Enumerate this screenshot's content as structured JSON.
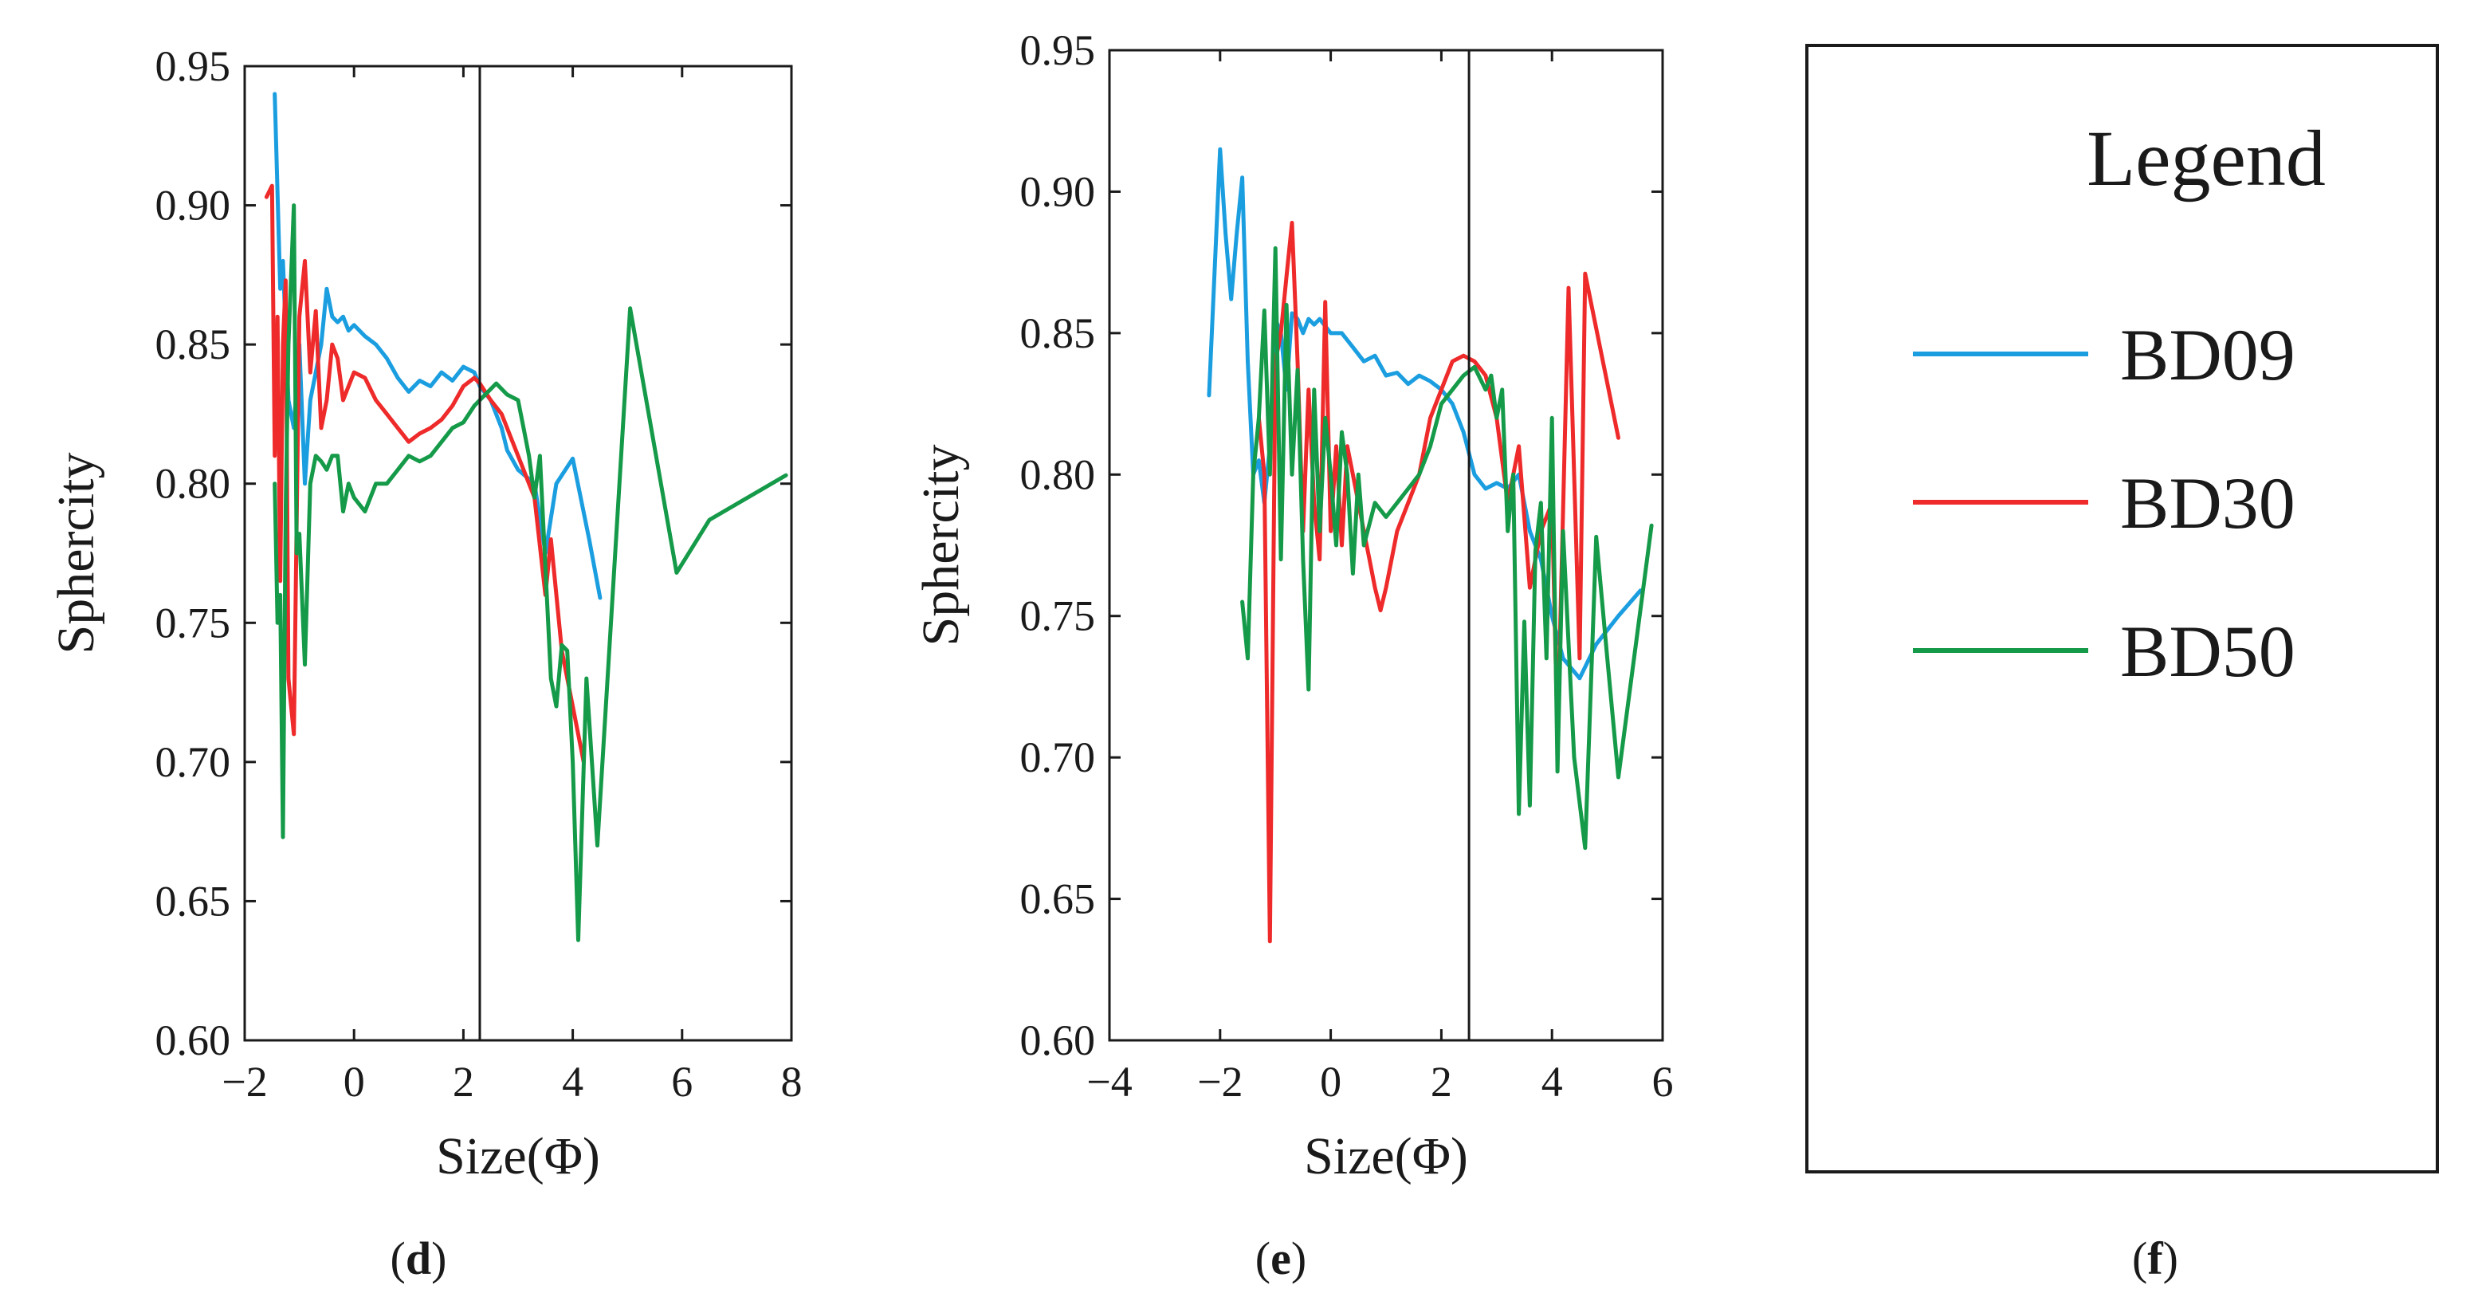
{
  "chart_data": [
    {
      "type": "line",
      "panel_label": "(d)",
      "panel_letter": "d",
      "xlabel": "Size(Φ)",
      "ylabel": "Sphercity",
      "xlim": [
        -2,
        8
      ],
      "ylim": [
        0.6,
        0.95
      ],
      "xticks": [
        -2,
        0,
        2,
        4,
        6,
        8
      ],
      "xtick_labels": [
        "−2",
        "0",
        "2",
        "4",
        "6",
        "8"
      ],
      "yticks": [
        0.6,
        0.65,
        0.7,
        0.75,
        0.8,
        0.85,
        0.9,
        0.95
      ],
      "ytick_labels": [
        "0.60",
        "0.65",
        "0.70",
        "0.75",
        "0.80",
        "0.85",
        "0.90",
        "0.95"
      ],
      "vline": 2.3,
      "grid": false,
      "series": [
        {
          "name": "BD09",
          "x": [
            -1.45,
            -1.35,
            -1.3,
            -1.2,
            -1.1,
            -1.0,
            -0.9,
            -0.8,
            -0.7,
            -0.6,
            -0.5,
            -0.4,
            -0.3,
            -0.2,
            -0.1,
            0.0,
            0.2,
            0.4,
            0.6,
            0.8,
            1.0,
            1.2,
            1.4,
            1.6,
            1.8,
            2.0,
            2.2,
            2.3,
            2.5,
            2.7,
            2.8,
            3.0,
            3.3,
            3.5,
            3.7,
            4.0,
            4.3,
            4.5
          ],
          "y": [
            0.94,
            0.87,
            0.88,
            0.83,
            0.82,
            0.85,
            0.8,
            0.83,
            0.84,
            0.85,
            0.87,
            0.86,
            0.858,
            0.86,
            0.855,
            0.857,
            0.853,
            0.85,
            0.845,
            0.838,
            0.833,
            0.837,
            0.835,
            0.84,
            0.837,
            0.842,
            0.84,
            0.835,
            0.83,
            0.82,
            0.812,
            0.805,
            0.8,
            0.775,
            0.8,
            0.809,
            0.78,
            0.759
          ]
        },
        {
          "name": "BD30",
          "x": [
            -1.6,
            -1.5,
            -1.45,
            -1.4,
            -1.35,
            -1.3,
            -1.25,
            -1.2,
            -1.1,
            -1.0,
            -0.9,
            -0.8,
            -0.7,
            -0.6,
            -0.5,
            -0.4,
            -0.3,
            -0.2,
            -0.1,
            0.0,
            0.2,
            0.4,
            0.6,
            0.8,
            1.0,
            1.2,
            1.4,
            1.6,
            1.8,
            2.0,
            2.2,
            2.3,
            2.5,
            2.7,
            2.9,
            3.1,
            3.3,
            3.5,
            3.6,
            3.8,
            4.0,
            4.2
          ],
          "y": [
            0.903,
            0.907,
            0.81,
            0.86,
            0.765,
            0.85,
            0.873,
            0.73,
            0.71,
            0.86,
            0.88,
            0.84,
            0.862,
            0.82,
            0.83,
            0.85,
            0.845,
            0.83,
            0.835,
            0.84,
            0.838,
            0.83,
            0.825,
            0.82,
            0.815,
            0.818,
            0.82,
            0.823,
            0.828,
            0.835,
            0.838,
            0.836,
            0.83,
            0.825,
            0.815,
            0.805,
            0.795,
            0.76,
            0.78,
            0.74,
            0.72,
            0.7
          ]
        },
        {
          "name": "BD50",
          "x": [
            -1.45,
            -1.4,
            -1.35,
            -1.3,
            -1.25,
            -1.2,
            -1.1,
            -1.05,
            -1.0,
            -0.9,
            -0.8,
            -0.7,
            -0.6,
            -0.5,
            -0.4,
            -0.3,
            -0.2,
            -0.1,
            0.0,
            0.2,
            0.4,
            0.6,
            0.8,
            1.0,
            1.2,
            1.4,
            1.6,
            1.8,
            2.0,
            2.2,
            2.4,
            2.6,
            2.8,
            3.0,
            3.1,
            3.2,
            3.3,
            3.4,
            3.6,
            3.7,
            3.8,
            3.9,
            4.0,
            4.1,
            4.25,
            4.45,
            5.05,
            5.9,
            6.5,
            7.9
          ],
          "y": [
            0.8,
            0.75,
            0.76,
            0.673,
            0.79,
            0.85,
            0.9,
            0.775,
            0.782,
            0.735,
            0.8,
            0.81,
            0.808,
            0.805,
            0.81,
            0.81,
            0.79,
            0.8,
            0.795,
            0.79,
            0.8,
            0.8,
            0.805,
            0.81,
            0.808,
            0.81,
            0.815,
            0.82,
            0.822,
            0.828,
            0.832,
            0.836,
            0.832,
            0.83,
            0.82,
            0.81,
            0.795,
            0.81,
            0.73,
            0.72,
            0.742,
            0.74,
            0.7,
            0.636,
            0.73,
            0.67,
            0.863,
            0.768,
            0.787,
            0.803
          ]
        }
      ]
    },
    {
      "type": "line",
      "panel_label": "(e)",
      "panel_letter": "e",
      "xlabel": "Size(Φ)",
      "ylabel": "Sphercity",
      "xlim": [
        -4,
        6
      ],
      "ylim": [
        0.6,
        0.95
      ],
      "xticks": [
        -4,
        -2,
        0,
        2,
        4,
        6
      ],
      "xtick_labels": [
        "−4",
        "−2",
        "0",
        "2",
        "4",
        "6"
      ],
      "yticks": [
        0.6,
        0.65,
        0.7,
        0.75,
        0.8,
        0.85,
        0.9,
        0.95
      ],
      "ytick_labels": [
        "0.60",
        "0.65",
        "0.70",
        "0.75",
        "0.80",
        "0.85",
        "0.90",
        "0.95"
      ],
      "vline": 2.5,
      "grid": false,
      "series": [
        {
          "name": "BD09",
          "x": [
            -2.2,
            -2.0,
            -1.9,
            -1.8,
            -1.7,
            -1.6,
            -1.5,
            -1.4,
            -1.3,
            -1.2,
            -1.1,
            -1.0,
            -0.9,
            -0.8,
            -0.7,
            -0.6,
            -0.5,
            -0.4,
            -0.3,
            -0.2,
            0.0,
            0.2,
            0.4,
            0.6,
            0.8,
            1.0,
            1.2,
            1.4,
            1.6,
            1.8,
            2.0,
            2.2,
            2.4,
            2.6,
            2.8,
            3.0,
            3.2,
            3.4,
            3.6,
            3.8,
            4.0,
            4.2,
            4.5,
            4.8,
            5.2,
            5.6
          ],
          "y": [
            0.828,
            0.915,
            0.885,
            0.862,
            0.885,
            0.905,
            0.84,
            0.8,
            0.805,
            0.79,
            0.81,
            0.855,
            0.85,
            0.83,
            0.857,
            0.855,
            0.85,
            0.855,
            0.853,
            0.855,
            0.85,
            0.85,
            0.845,
            0.84,
            0.842,
            0.835,
            0.836,
            0.832,
            0.835,
            0.833,
            0.83,
            0.825,
            0.815,
            0.8,
            0.795,
            0.797,
            0.795,
            0.8,
            0.78,
            0.77,
            0.75,
            0.735,
            0.728,
            0.74,
            0.75,
            0.759
          ]
        },
        {
          "name": "BD30",
          "x": [
            -1.3,
            -1.2,
            -1.1,
            -1.0,
            -0.9,
            -0.8,
            -0.7,
            -0.6,
            -0.5,
            -0.4,
            -0.3,
            -0.2,
            -0.1,
            0.0,
            0.1,
            0.2,
            0.3,
            0.4,
            0.5,
            0.6,
            0.7,
            0.8,
            0.9,
            1.0,
            1.2,
            1.4,
            1.6,
            1.8,
            2.0,
            2.2,
            2.4,
            2.6,
            2.8,
            3.0,
            3.2,
            3.4,
            3.6,
            3.8,
            4.0,
            4.1,
            4.3,
            4.5,
            4.6,
            5.2
          ],
          "y": [
            0.82,
            0.8,
            0.635,
            0.84,
            0.85,
            0.87,
            0.889,
            0.84,
            0.78,
            0.83,
            0.79,
            0.77,
            0.861,
            0.78,
            0.81,
            0.775,
            0.81,
            0.8,
            0.79,
            0.78,
            0.77,
            0.76,
            0.752,
            0.76,
            0.78,
            0.79,
            0.8,
            0.82,
            0.83,
            0.84,
            0.842,
            0.84,
            0.835,
            0.82,
            0.79,
            0.81,
            0.76,
            0.78,
            0.79,
            0.707,
            0.866,
            0.735,
            0.871,
            0.813
          ]
        },
        {
          "name": "BD50",
          "x": [
            -1.6,
            -1.5,
            -1.4,
            -1.3,
            -1.2,
            -1.1,
            -1.0,
            -0.9,
            -0.8,
            -0.7,
            -0.6,
            -0.5,
            -0.4,
            -0.3,
            -0.2,
            -0.1,
            0.0,
            0.1,
            0.2,
            0.3,
            0.4,
            0.5,
            0.6,
            0.8,
            1.0,
            1.2,
            1.4,
            1.6,
            1.8,
            2.0,
            2.2,
            2.4,
            2.6,
            2.8,
            2.9,
            3.0,
            3.1,
            3.2,
            3.3,
            3.4,
            3.5,
            3.6,
            3.7,
            3.8,
            3.9,
            4.0,
            4.1,
            4.2,
            4.4,
            4.6,
            4.8,
            5.0,
            5.2,
            5.8
          ],
          "y": [
            0.755,
            0.735,
            0.8,
            0.82,
            0.858,
            0.8,
            0.88,
            0.77,
            0.86,
            0.8,
            0.837,
            0.77,
            0.724,
            0.83,
            0.78,
            0.82,
            0.8,
            0.775,
            0.815,
            0.8,
            0.765,
            0.8,
            0.775,
            0.79,
            0.785,
            0.79,
            0.795,
            0.8,
            0.81,
            0.825,
            0.83,
            0.835,
            0.838,
            0.83,
            0.835,
            0.82,
            0.83,
            0.78,
            0.8,
            0.68,
            0.748,
            0.683,
            0.773,
            0.79,
            0.735,
            0.82,
            0.695,
            0.78,
            0.7,
            0.668,
            0.778,
            0.735,
            0.693,
            0.782
          ]
        }
      ]
    }
  ],
  "legend": {
    "panel_label": "(f)",
    "panel_letter": "f",
    "title": "Legend",
    "items": [
      {
        "name": "BD09",
        "color": "#1b9ee0"
      },
      {
        "name": "BD30",
        "color": "#ee2a2a"
      },
      {
        "name": "BD50",
        "color": "#149a48"
      }
    ]
  },
  "colors": {
    "BD09": "#1b9ee0",
    "BD30": "#ee2a2a",
    "BD50": "#149a48"
  }
}
